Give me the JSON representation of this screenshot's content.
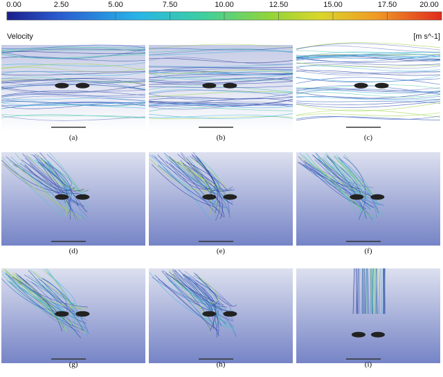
{
  "colorbar": {
    "ticks": [
      "0.00",
      "2.50",
      "5.00",
      "7.50",
      "10.00",
      "12.50",
      "15.00",
      "17.50",
      "20.00"
    ],
    "title": "Velocity",
    "unit": "[m s^-1]"
  },
  "panels": [
    {
      "label": "(a)"
    },
    {
      "label": "(b)"
    },
    {
      "label": "(c)"
    },
    {
      "label": "(d)"
    },
    {
      "label": "(e)"
    },
    {
      "label": "(f)"
    },
    {
      "label": "(g)"
    },
    {
      "label": "(h)"
    },
    {
      "label": "(i)"
    }
  ]
}
